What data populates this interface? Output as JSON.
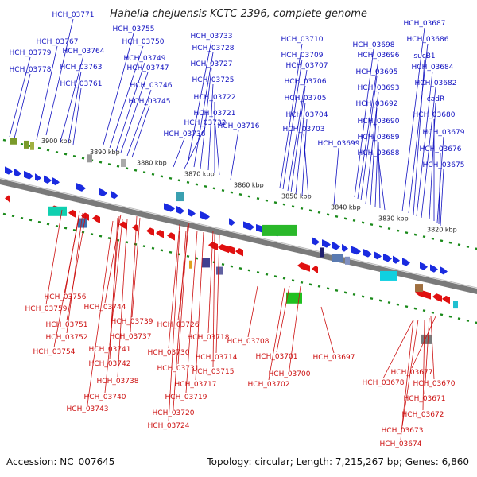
{
  "header": {
    "title": "Hahella chejuensis KCTC 2396, complete genome"
  },
  "footer": {
    "accession": "Accession: NC_007645",
    "summary": "Topology: circular; Length: 7,215,267 bp; Genes: 6,860"
  },
  "colors": {
    "top_label": "#1010c0",
    "bottom_label": "#cc1010",
    "forward_gene": "#1a2be0",
    "reverse_gene": "#e01010",
    "backbone": "#7a7a7a",
    "tick": "#1a8a1a"
  },
  "scale_ticks": [
    "3900 kbp",
    "3890 kbp",
    "3880 kbp",
    "3870 kbp",
    "3860 kbp",
    "3850 kbp",
    "3840 kbp",
    "3830 kbp",
    "3820 kbp"
  ],
  "top_labels": [
    "HCH_03771",
    "HCH_03779",
    "HCH_03778",
    "HCH_03767",
    "HCH_03764",
    "HCH_03763",
    "HCH_03761",
    "HCH_03755",
    "HCH_03750",
    "HCH_03749",
    "HCH_03747",
    "HCH_03746",
    "HCH_03745",
    "HCH_03733",
    "HCH_03728",
    "HCH_03727",
    "HCH_03725",
    "HCH_03722",
    "HCH_03721",
    "HCH_03732",
    "HCH_03716",
    "HCH_03736",
    "HCH_03710",
    "HCH_03709",
    "HCH_03707",
    "HCH_03706",
    "HCH_03705",
    "HCH_03704",
    "HCH_03703",
    "HCH_03698",
    "HCH_03696",
    "HCH_03695",
    "HCH_03693",
    "HCH_03692",
    "HCH_03690",
    "HCH_03689",
    "HCH_03688",
    "HCH_03699",
    "HCH_03687",
    "HCH_03686",
    "sucB1",
    "HCH_03684",
    "HCH_03682",
    "cadR",
    "HCH_03680",
    "HCH_03679",
    "HCH_03676",
    "HCH_03675"
  ],
  "bottom_labels": [
    "HCH_03756",
    "HCH_03759",
    "HCH_03751",
    "HCH_03752",
    "HCH_03754",
    "HCH_03744",
    "HCH_03739",
    "HCH_03737",
    "HCH_03741",
    "HCH_03742",
    "HCH_03738",
    "HCH_03740",
    "HCH_03743",
    "HCH_03726",
    "HCH_03730",
    "HCH_03731",
    "HCH_03718",
    "HCH_03714",
    "HCH_03715",
    "HCH_03717",
    "HCH_03719",
    "HCH_03720",
    "HCH_03724",
    "HCH_03708",
    "HCH_03701",
    "HCH_03700",
    "HCH_03702",
    "HCH_03697",
    "HCH_03677",
    "HCH_03678",
    "HCH_03670",
    "HCH_03671",
    "HCH_03672",
    "HCH_03673",
    "HCH_03674"
  ]
}
